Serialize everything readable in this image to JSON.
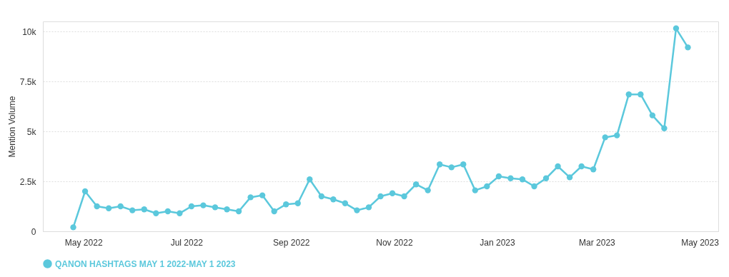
{
  "chart_data": {
    "type": "line",
    "ylabel": "Mention Volume",
    "x": [
      "2022-04-25",
      "2022-05-02",
      "2022-05-09",
      "2022-05-16",
      "2022-05-23",
      "2022-05-30",
      "2022-06-06",
      "2022-06-13",
      "2022-06-20",
      "2022-06-27",
      "2022-07-04",
      "2022-07-11",
      "2022-07-18",
      "2022-07-25",
      "2022-08-01",
      "2022-08-08",
      "2022-08-15",
      "2022-08-22",
      "2022-08-29",
      "2022-09-05",
      "2022-09-12",
      "2022-09-19",
      "2022-09-26",
      "2022-10-03",
      "2022-10-10",
      "2022-10-17",
      "2022-10-24",
      "2022-10-31",
      "2022-11-07",
      "2022-11-14",
      "2022-11-21",
      "2022-11-28",
      "2022-12-05",
      "2022-12-12",
      "2022-12-19",
      "2022-12-26",
      "2023-01-02",
      "2023-01-09",
      "2023-01-16",
      "2023-01-23",
      "2023-01-30",
      "2023-02-06",
      "2023-02-13",
      "2023-02-20",
      "2023-02-27",
      "2023-03-06",
      "2023-03-13",
      "2023-03-20",
      "2023-03-27",
      "2023-04-03",
      "2023-04-10",
      "2023-04-17",
      "2023-04-24"
    ],
    "series": [
      {
        "name": "QANON HASHTAGS MAY 1 2022-MAY 1 2023",
        "color": "#5bc8dc",
        "values": [
          200,
          2000,
          1250,
          1150,
          1250,
          1050,
          1100,
          900,
          1000,
          900,
          1250,
          1300,
          1200,
          1100,
          1000,
          1700,
          1800,
          1000,
          1350,
          1400,
          2600,
          1750,
          1600,
          1400,
          1050,
          1200,
          1750,
          1900,
          1750,
          2350,
          2050,
          3350,
          3200,
          3350,
          2050,
          2250,
          2750,
          2650,
          2600,
          2250,
          2650,
          3250,
          2700,
          3250,
          3100,
          4700,
          4800,
          6850,
          6850,
          5800,
          5150,
          10150,
          9200
        ]
      }
    ],
    "xlim": [
      "2022-04-07",
      "2023-05-12"
    ],
    "xticks": [
      {
        "value": "2022-05-01",
        "label": "May 2022"
      },
      {
        "value": "2022-07-01",
        "label": "Jul 2022"
      },
      {
        "value": "2022-09-01",
        "label": "Sep 2022"
      },
      {
        "value": "2022-11-01",
        "label": "Nov 2022"
      },
      {
        "value": "2023-01-01",
        "label": "Jan 2023"
      },
      {
        "value": "2023-03-01",
        "label": "Mar 2023"
      },
      {
        "value": "2023-05-01",
        "label": "May 2023"
      }
    ],
    "ylim": [
      0,
      10500
    ],
    "yticks": [
      0,
      {
        "value": 2500,
        "label": "2.5k"
      },
      {
        "value": 5000,
        "label": "5k"
      },
      {
        "value": 7500,
        "label": "7.5k"
      },
      {
        "value": 10000,
        "label": "10k"
      }
    ],
    "grid": "y",
    "legend": "bottom",
    "marker": "circle",
    "line_style": "solid"
  }
}
